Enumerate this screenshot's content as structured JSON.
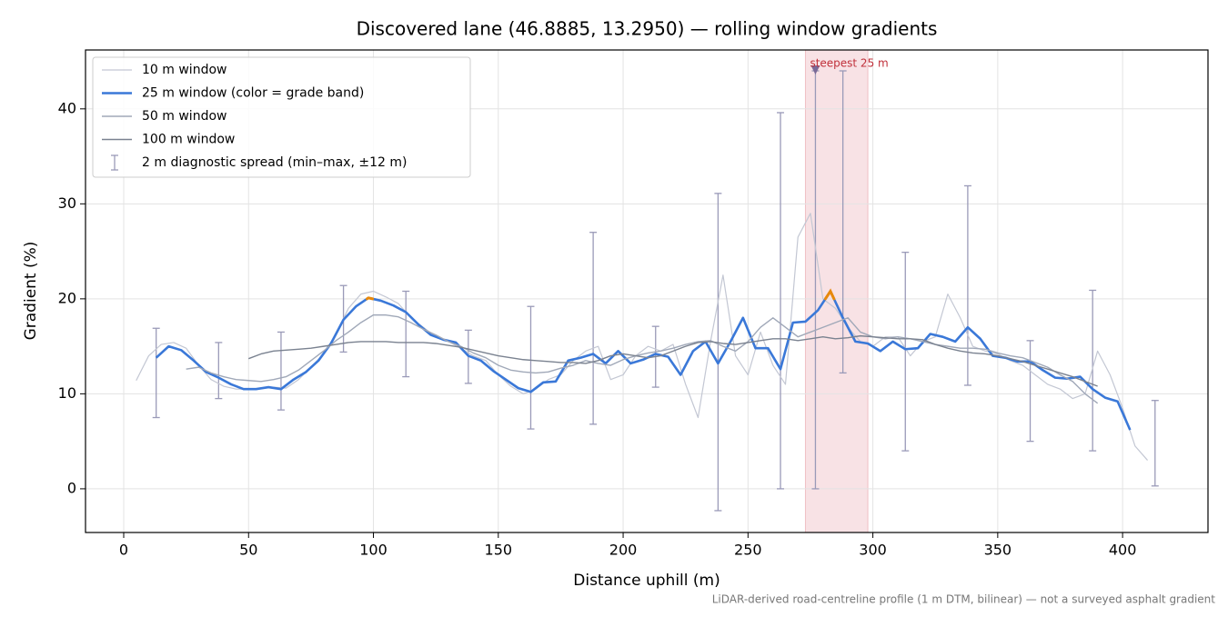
{
  "chart_data": {
    "type": "line",
    "title": "Discovered lane (46.8885, 13.2950) — rolling window gradients",
    "xlabel": "Distance uphill (m)",
    "ylabel": "Gradient (%)",
    "footnote": "LiDAR-derived road-centreline profile (1 m DTM, bilinear) — not a surveyed asphalt gradient",
    "xlim": [
      -15.3,
      434.2
    ],
    "ylim": [
      -4.6,
      46.2
    ],
    "xticks": [
      0,
      50,
      100,
      150,
      200,
      250,
      300,
      350,
      400
    ],
    "yticks": [
      0,
      10,
      20,
      30,
      40
    ],
    "grid": true,
    "legend": "upper left",
    "series": [
      {
        "name": "10 m window",
        "color": "#c3c7d3",
        "width": 1.2,
        "x": [
          5,
          10,
          15,
          20,
          25,
          30,
          35,
          40,
          45,
          50,
          55,
          60,
          65,
          70,
          75,
          80,
          85,
          90,
          95,
          100,
          105,
          110,
          115,
          120,
          125,
          130,
          135,
          140,
          145,
          150,
          155,
          160,
          165,
          170,
          175,
          180,
          185,
          190,
          195,
          200,
          205,
          210,
          215,
          220,
          225,
          230,
          235,
          240,
          245,
          250,
          255,
          260,
          265,
          270,
          275,
          280,
          285,
          290,
          295,
          300,
          305,
          310,
          315,
          320,
          325,
          330,
          335,
          340,
          345,
          350,
          355,
          360,
          365,
          370,
          375,
          380,
          385,
          390,
          395,
          400,
          405,
          410
        ],
        "values": [
          11.4,
          14.0,
          15.2,
          15.4,
          14.8,
          13.0,
          11.5,
          10.8,
          10.5,
          10.5,
          10.6,
          10.7,
          10.6,
          11.5,
          12.8,
          14.2,
          16.3,
          19.0,
          20.5,
          20.8,
          20.2,
          19.5,
          18.0,
          17.0,
          16.0,
          15.5,
          14.8,
          14.0,
          13.5,
          12.0,
          10.8,
          10.0,
          10.5,
          11.5,
          12.0,
          13.5,
          14.5,
          15.0,
          11.5,
          12.0,
          14.0,
          15.0,
          14.5,
          15.2,
          11.0,
          7.5,
          15.5,
          22.5,
          14.0,
          12.0,
          16.5,
          13.0,
          11.0,
          26.5,
          29.0,
          20.0,
          19.0,
          17.0,
          15.5,
          15.0,
          16.0,
          16.0,
          14.0,
          15.5,
          16.0,
          20.5,
          18.0,
          15.0,
          14.5,
          14.2,
          13.5,
          13.0,
          12.0,
          11.0,
          10.5,
          9.5,
          10.0,
          14.5,
          12.0,
          8.5,
          4.5,
          3.0
        ]
      },
      {
        "name": "25 m window (color = grade band)",
        "color": "#3a78d8",
        "width": 2.6,
        "band_from": 20,
        "band_color": "#e8890c",
        "x": [
          13,
          18,
          23,
          28,
          33,
          38,
          43,
          48,
          53,
          58,
          63,
          68,
          73,
          78,
          83,
          88,
          93,
          98,
          103,
          108,
          113,
          118,
          123,
          128,
          133,
          138,
          143,
          148,
          153,
          158,
          163,
          168,
          173,
          178,
          183,
          188,
          193,
          198,
          203,
          208,
          213,
          218,
          223,
          228,
          233,
          238,
          243,
          248,
          253,
          258,
          263,
          268,
          273,
          278,
          283,
          288,
          293,
          298,
          303,
          308,
          313,
          318,
          323,
          328,
          333,
          338,
          343,
          348,
          353,
          358,
          363,
          368,
          373,
          378,
          383,
          388,
          393,
          398,
          403
        ],
        "values": [
          13.8,
          15.0,
          14.6,
          13.5,
          12.3,
          11.7,
          11.0,
          10.5,
          10.5,
          10.7,
          10.5,
          11.5,
          12.3,
          13.5,
          15.3,
          17.8,
          19.2,
          20.1,
          19.8,
          19.3,
          18.6,
          17.3,
          16.2,
          15.7,
          15.4,
          14.0,
          13.5,
          12.4,
          11.5,
          10.6,
          10.2,
          11.2,
          11.3,
          13.5,
          13.8,
          14.2,
          13.2,
          14.5,
          13.2,
          13.6,
          14.2,
          13.9,
          12.0,
          14.5,
          15.5,
          13.2,
          15.5,
          18.0,
          14.8,
          14.8,
          12.6,
          17.5,
          17.6,
          18.8,
          20.8,
          18.0,
          15.5,
          15.3,
          14.5,
          15.5,
          14.7,
          14.8,
          16.3,
          16.0,
          15.5,
          17.0,
          15.8,
          14.0,
          13.8,
          13.4,
          13.4,
          12.5,
          11.7,
          11.6,
          11.8,
          10.5,
          9.6,
          9.2,
          6.2
        ]
      },
      {
        "name": "50 m window",
        "color": "#a0a8b8",
        "width": 1.4,
        "x": [
          25,
          30,
          35,
          40,
          45,
          50,
          55,
          60,
          65,
          70,
          75,
          80,
          85,
          90,
          95,
          100,
          105,
          110,
          115,
          120,
          125,
          130,
          135,
          140,
          145,
          150,
          155,
          160,
          165,
          170,
          175,
          180,
          185,
          190,
          195,
          200,
          205,
          210,
          215,
          220,
          225,
          230,
          235,
          240,
          245,
          250,
          255,
          260,
          265,
          270,
          275,
          280,
          285,
          290,
          295,
          300,
          305,
          310,
          315,
          320,
          325,
          330,
          335,
          340,
          345,
          350,
          355,
          360,
          365,
          370,
          375,
          380,
          385,
          390
        ],
        "values": [
          12.6,
          12.8,
          12.2,
          11.8,
          11.5,
          11.4,
          11.3,
          11.5,
          11.8,
          12.5,
          13.5,
          14.5,
          15.6,
          16.5,
          17.5,
          18.3,
          18.3,
          18.1,
          17.5,
          16.8,
          16.2,
          15.5,
          15.0,
          14.3,
          13.8,
          13.0,
          12.5,
          12.3,
          12.2,
          12.3,
          12.7,
          13.0,
          13.5,
          13.2,
          13.0,
          13.6,
          14.0,
          14.3,
          14.5,
          14.8,
          15.2,
          15.5,
          15.6,
          15.0,
          14.5,
          15.5,
          17.0,
          18.0,
          17.0,
          16.0,
          16.5,
          17.0,
          17.5,
          18.0,
          16.5,
          16.0,
          15.8,
          16.0,
          15.8,
          15.5,
          15.2,
          15.0,
          14.8,
          14.8,
          14.7,
          14.3,
          14.0,
          13.8,
          13.3,
          12.8,
          12.0,
          11.3,
          10.0,
          9.0
        ]
      },
      {
        "name": "100 m window",
        "color": "#7a8290",
        "width": 1.4,
        "x": [
          50,
          55,
          60,
          65,
          70,
          75,
          80,
          85,
          90,
          95,
          100,
          105,
          110,
          115,
          120,
          125,
          130,
          135,
          140,
          145,
          150,
          155,
          160,
          165,
          170,
          175,
          180,
          185,
          190,
          195,
          200,
          205,
          210,
          215,
          220,
          225,
          230,
          235,
          240,
          245,
          250,
          255,
          260,
          265,
          270,
          275,
          280,
          285,
          290,
          295,
          300,
          305,
          310,
          315,
          320,
          325,
          330,
          335,
          340,
          345,
          350,
          355,
          360,
          365,
          370,
          375,
          380,
          385,
          390
        ],
        "values": [
          13.7,
          14.2,
          14.5,
          14.6,
          14.7,
          14.8,
          15.0,
          15.2,
          15.4,
          15.5,
          15.5,
          15.5,
          15.4,
          15.4,
          15.4,
          15.3,
          15.1,
          14.9,
          14.6,
          14.3,
          14.0,
          13.8,
          13.6,
          13.5,
          13.4,
          13.3,
          13.3,
          13.2,
          13.5,
          14.0,
          14.2,
          14.0,
          13.8,
          14.0,
          14.5,
          15.0,
          15.4,
          15.5,
          15.3,
          15.2,
          15.4,
          15.6,
          15.8,
          15.8,
          15.6,
          15.8,
          16.0,
          15.8,
          15.9,
          16.1,
          16.0,
          15.9,
          15.8,
          15.8,
          15.7,
          15.2,
          14.8,
          14.5,
          14.3,
          14.2,
          14.0,
          13.7,
          13.4,
          13.0,
          12.6,
          12.2,
          11.8,
          11.3,
          10.8
        ]
      }
    ],
    "errorbars": {
      "name": "2 m diagnostic spread (min–max, ±12 m)",
      "color": "#9a9ab8",
      "x": [
        13,
        38,
        63,
        88,
        113,
        138,
        163,
        188,
        213,
        238,
        263,
        277,
        288,
        313,
        338,
        363,
        388,
        413
      ],
      "low": [
        7.5,
        9.5,
        8.3,
        14.4,
        11.8,
        11.1,
        6.3,
        6.8,
        10.7,
        -2.3,
        0,
        0,
        12.2,
        4.0,
        10.9,
        5.0,
        4.0,
        0.3
      ],
      "high": [
        16.9,
        15.4,
        16.5,
        21.4,
        20.8,
        16.7,
        19.2,
        27.0,
        17.1,
        31.1,
        39.6,
        44.0,
        44.0,
        24.9,
        31.9,
        15.6,
        20.9,
        9.3
      ]
    },
    "span": [
      273,
      298
    ],
    "span_color": "#e8a0a8",
    "annotations": [
      {
        "text": "steepest 25 m",
        "x": 277,
        "y": 44,
        "color": "#c0303a"
      }
    ]
  }
}
